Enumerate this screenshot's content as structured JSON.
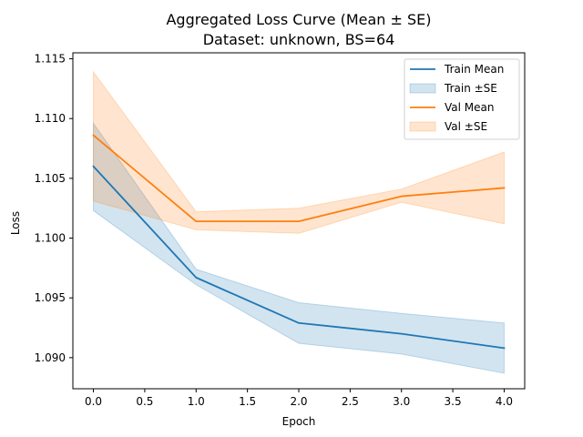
{
  "chart_data": {
    "type": "line",
    "title": "Aggregated Loss Curve (Mean ± SE)",
    "subtitle": "Dataset: unknown, BS=64",
    "xlabel": "Epoch",
    "ylabel": "Loss",
    "x": [
      0,
      1,
      2,
      3,
      4
    ],
    "xlim": [
      -0.2,
      4.2
    ],
    "ylim": [
      1.0874,
      1.1155
    ],
    "x_ticks": [
      0.0,
      0.5,
      1.0,
      1.5,
      2.0,
      2.5,
      3.0,
      3.5,
      4.0
    ],
    "x_tick_labels": [
      "0.0",
      "0.5",
      "1.0",
      "1.5",
      "2.0",
      "2.5",
      "3.0",
      "3.5",
      "4.0"
    ],
    "y_ticks": [
      1.09,
      1.095,
      1.1,
      1.105,
      1.11,
      1.115
    ],
    "y_tick_labels": [
      "1.090",
      "1.095",
      "1.100",
      "1.105",
      "1.110",
      "1.115"
    ],
    "grid": false,
    "legend_position": "top-right",
    "series": [
      {
        "name": "Train Mean",
        "kind": "line",
        "color": "#1f77b4",
        "values": [
          1.106,
          1.0967,
          1.0929,
          1.092,
          1.0908
        ]
      },
      {
        "name": "Train ±SE",
        "kind": "band",
        "color": "#1f77b4",
        "lower": [
          1.1023,
          1.0961,
          1.0912,
          1.0903,
          1.0887
        ],
        "upper": [
          1.1096,
          1.0974,
          1.0946,
          1.0937,
          1.0929
        ]
      },
      {
        "name": "Val Mean",
        "kind": "line",
        "color": "#ff7f0e",
        "values": [
          1.1086,
          1.1014,
          1.1014,
          1.1035,
          1.1042
        ]
      },
      {
        "name": "Val ±SE",
        "kind": "band",
        "color": "#ff7f0e",
        "lower": [
          1.1031,
          1.1007,
          1.1004,
          1.103,
          1.1012
        ],
        "upper": [
          1.1139,
          1.1022,
          1.1025,
          1.1041,
          1.1072
        ]
      }
    ]
  }
}
